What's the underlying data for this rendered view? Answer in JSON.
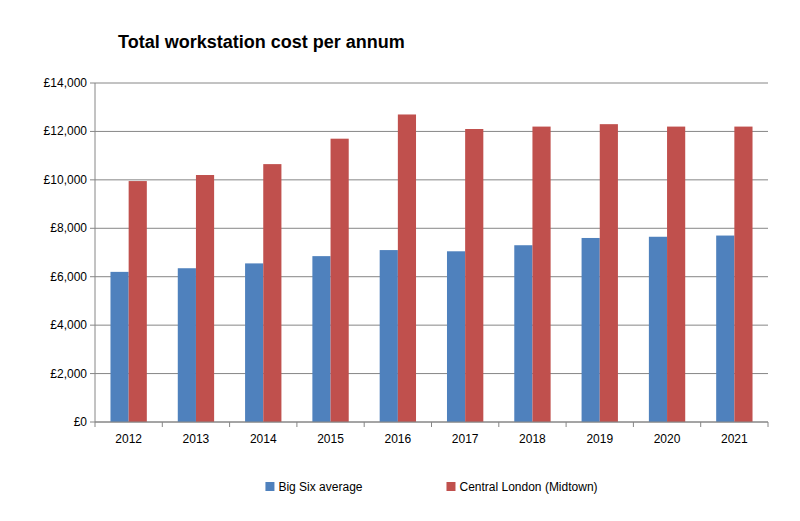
{
  "chart_data": {
    "type": "bar",
    "title": "Total workstation cost per annum",
    "categories": [
      "2012",
      "2013",
      "2014",
      "2015",
      "2016",
      "2017",
      "2018",
      "2019",
      "2020",
      "2021"
    ],
    "series": [
      {
        "name": "Big Six average",
        "color": "#4f81bd",
        "values": [
          6200,
          6350,
          6550,
          6850,
          7100,
          7050,
          7300,
          7600,
          7650,
          7700
        ]
      },
      {
        "name": "Central London (Midtown)",
        "color": "#c0504d",
        "values": [
          9950,
          10200,
          10650,
          11700,
          12700,
          12100,
          12200,
          12300,
          12200,
          12200
        ]
      }
    ],
    "ylim": [
      0,
      14000
    ],
    "yticks": [
      {
        "value": 0,
        "label": "£0"
      },
      {
        "value": 2000,
        "label": "£2,000"
      },
      {
        "value": 4000,
        "label": "£4,000"
      },
      {
        "value": 6000,
        "label": "£6,000"
      },
      {
        "value": 8000,
        "label": "£8,000"
      },
      {
        "value": 10000,
        "label": "£10,000"
      },
      {
        "value": 12000,
        "label": "£12,000"
      },
      {
        "value": 14000,
        "label": "£14,000"
      }
    ],
    "grid": true,
    "legend": "bottom"
  }
}
